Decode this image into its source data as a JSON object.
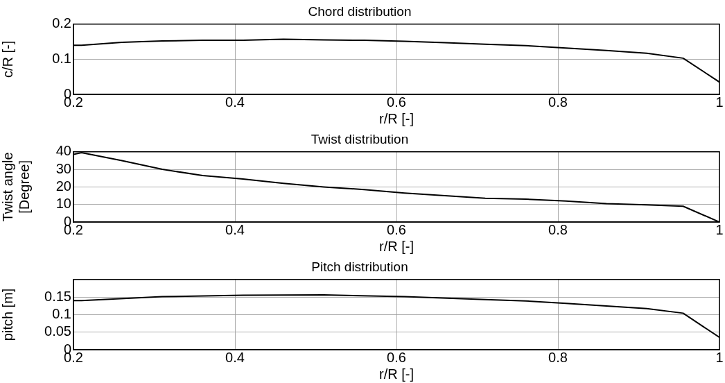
{
  "chart_data": [
    {
      "type": "line",
      "title": "Chord distribution",
      "xlabel": "r/R [-]",
      "ylabel": "c/R [-]",
      "xlim": [
        0.2,
        1
      ],
      "xticks": [
        0.2,
        0.4,
        0.6,
        0.8,
        1
      ],
      "ylim": [
        0,
        0.2
      ],
      "yticks": [
        0,
        0.1,
        0.2
      ],
      "grid": true,
      "legend": false,
      "marker": "none",
      "line_style": "solid",
      "series": [
        {
          "color": "#000000",
          "x": [
            0.2,
            0.21,
            0.26,
            0.31,
            0.36,
            0.41,
            0.46,
            0.51,
            0.56,
            0.61,
            0.66,
            0.71,
            0.76,
            0.81,
            0.86,
            0.91,
            0.955,
            1.0
          ],
          "values": [
            0.14,
            0.14,
            0.148,
            0.152,
            0.154,
            0.154,
            0.157,
            0.155,
            0.154,
            0.151,
            0.147,
            0.143,
            0.139,
            0.132,
            0.125,
            0.117,
            0.103,
            0.035
          ]
        }
      ]
    },
    {
      "type": "line",
      "title": "Twist distribution",
      "xlabel": "r/R [-]",
      "ylabel": "Twist angle [Degree]",
      "xlim": [
        0.2,
        1
      ],
      "xticks": [
        0.2,
        0.4,
        0.6,
        0.8,
        1
      ],
      "ylim": [
        0,
        40
      ],
      "yticks": [
        0,
        10,
        20,
        30,
        40
      ],
      "grid": true,
      "legend": false,
      "marker": "none",
      "line_style": "solid",
      "series": [
        {
          "color": "#000000",
          "x": [
            0.2,
            0.21,
            0.26,
            0.31,
            0.36,
            0.41,
            0.46,
            0.51,
            0.56,
            0.61,
            0.66,
            0.71,
            0.76,
            0.81,
            0.86,
            0.91,
            0.955,
            1.0
          ],
          "values": [
            38.5,
            39.5,
            35,
            30,
            26.5,
            24.5,
            22,
            20,
            18.5,
            16.5,
            15,
            13.5,
            13,
            12,
            10.5,
            9.8,
            9,
            0
          ]
        }
      ]
    },
    {
      "type": "line",
      "title": "Pitch distribution",
      "xlabel": "r/R [-]",
      "ylabel": "pitch [m]",
      "xlim": [
        0.2,
        1
      ],
      "xticks": [
        0.2,
        0.4,
        0.6,
        0.8,
        1
      ],
      "ylim": [
        0,
        0.2
      ],
      "yticks": [
        0,
        0.05,
        0.1,
        0.15
      ],
      "grid": true,
      "legend": false,
      "marker": "none",
      "line_style": "solid",
      "series": [
        {
          "color": "#000000",
          "x": [
            0.2,
            0.21,
            0.31,
            0.41,
            0.51,
            0.61,
            0.71,
            0.76,
            0.81,
            0.91,
            0.955,
            1.0
          ],
          "values": [
            0.14,
            0.14,
            0.151,
            0.155,
            0.156,
            0.151,
            0.143,
            0.139,
            0.132,
            0.117,
            0.104,
            0.035
          ]
        }
      ]
    }
  ]
}
